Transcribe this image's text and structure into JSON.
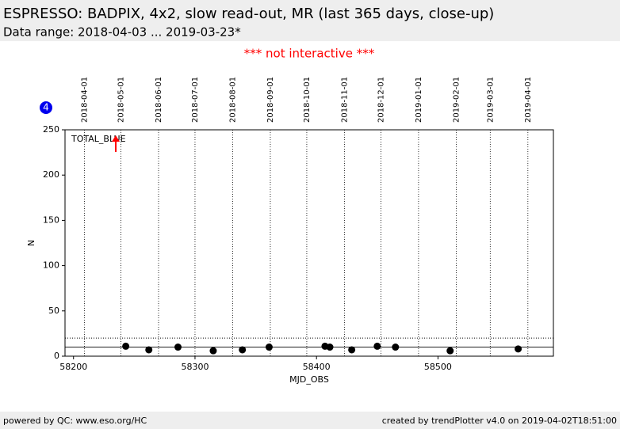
{
  "chart_data": {
    "type": "scatter",
    "title": "ESPRESSO: BADPIX, 4x2, slow read-out, MR (last 365 days, close-up)",
    "subtitle": "Data range: 2018-04-03 ... 2019-03-23*",
    "notice": "*** not interactive ***",
    "badge": "4",
    "annotation": "TOTAL_BLUE",
    "x_label": "MJD_OBS",
    "y_label": "N",
    "xlim": [
      58193,
      58595
    ],
    "xticks": [
      58200,
      58300,
      58400,
      58500
    ],
    "x2ticks": [
      {
        "value": 58209,
        "label": "2018-04-01"
      },
      {
        "value": 58239,
        "label": "2018-05-01"
      },
      {
        "value": 58270,
        "label": "2018-06-01"
      },
      {
        "value": 58300,
        "label": "2018-07-01"
      },
      {
        "value": 58331,
        "label": "2018-08-01"
      },
      {
        "value": 58362,
        "label": "2018-09-01"
      },
      {
        "value": 58392,
        "label": "2018-10-01"
      },
      {
        "value": 58423,
        "label": "2018-11-01"
      },
      {
        "value": 58453,
        "label": "2018-12-01"
      },
      {
        "value": 58484,
        "label": "2019-01-01"
      },
      {
        "value": 58515,
        "label": "2019-02-01"
      },
      {
        "value": 58543,
        "label": "2019-03-01"
      },
      {
        "value": 58574,
        "label": "2019-04-01"
      }
    ],
    "ylim": [
      0,
      250
    ],
    "yticks": [
      0,
      50,
      100,
      150,
      200,
      250
    ],
    "reference_lines": [
      {
        "value": 10,
        "style": "solid"
      },
      {
        "value": 20,
        "style": "dotted"
      }
    ],
    "color": "#000000",
    "x": [
      58243,
      58262,
      58286,
      58315,
      58339,
      58361,
      58407,
      58411,
      58429,
      58450,
      58465,
      58510,
      58566
    ],
    "values": [
      11,
      7,
      10,
      6,
      7,
      10,
      11,
      10,
      7,
      11,
      10,
      6,
      8
    ],
    "footer_left": "powered by QC: www.eso.org/HC",
    "footer_right": "created by trendPlotter v4.0 on 2019-04-02T18:51:00"
  }
}
